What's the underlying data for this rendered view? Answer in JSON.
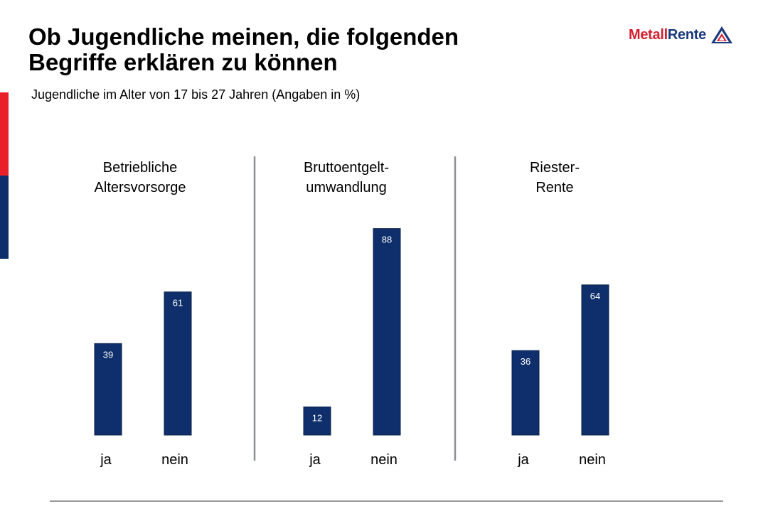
{
  "header": {
    "title_lines": [
      "Ob Jugendliche meinen, die folgenden",
      "Begriffe erklären zu können"
    ],
    "subtitle": "Jugendliche im Alter von 17 bis 27 Jahren (Angaben in %)"
  },
  "logo": {
    "text_part1": "Metall",
    "text_part2": "Rente",
    "icon": "metallrente-triangle-icon"
  },
  "colors": {
    "bar": "#0e2f6b",
    "accent_red": "#e8202a",
    "accent_blue": "#0e2f6b",
    "divider": "#8a8f96"
  },
  "chart_data": [
    {
      "type": "bar",
      "title_lines": [
        "Betriebliche",
        "Altersvorsorge"
      ],
      "categories": [
        "ja",
        "nein"
      ],
      "values": [
        39,
        61
      ],
      "ylim": [
        0,
        100
      ],
      "grid": false
    },
    {
      "type": "bar",
      "title_lines": [
        "Bruttoentgelt-",
        "umwandlung"
      ],
      "categories": [
        "ja",
        "nein"
      ],
      "values": [
        12,
        88
      ],
      "ylim": [
        0,
        100
      ],
      "grid": false
    },
    {
      "type": "bar",
      "title_lines": [
        "Riester-",
        "Rente"
      ],
      "categories": [
        "ja",
        "nein"
      ],
      "values": [
        36,
        64
      ],
      "ylim": [
        0,
        100
      ],
      "grid": false
    }
  ]
}
